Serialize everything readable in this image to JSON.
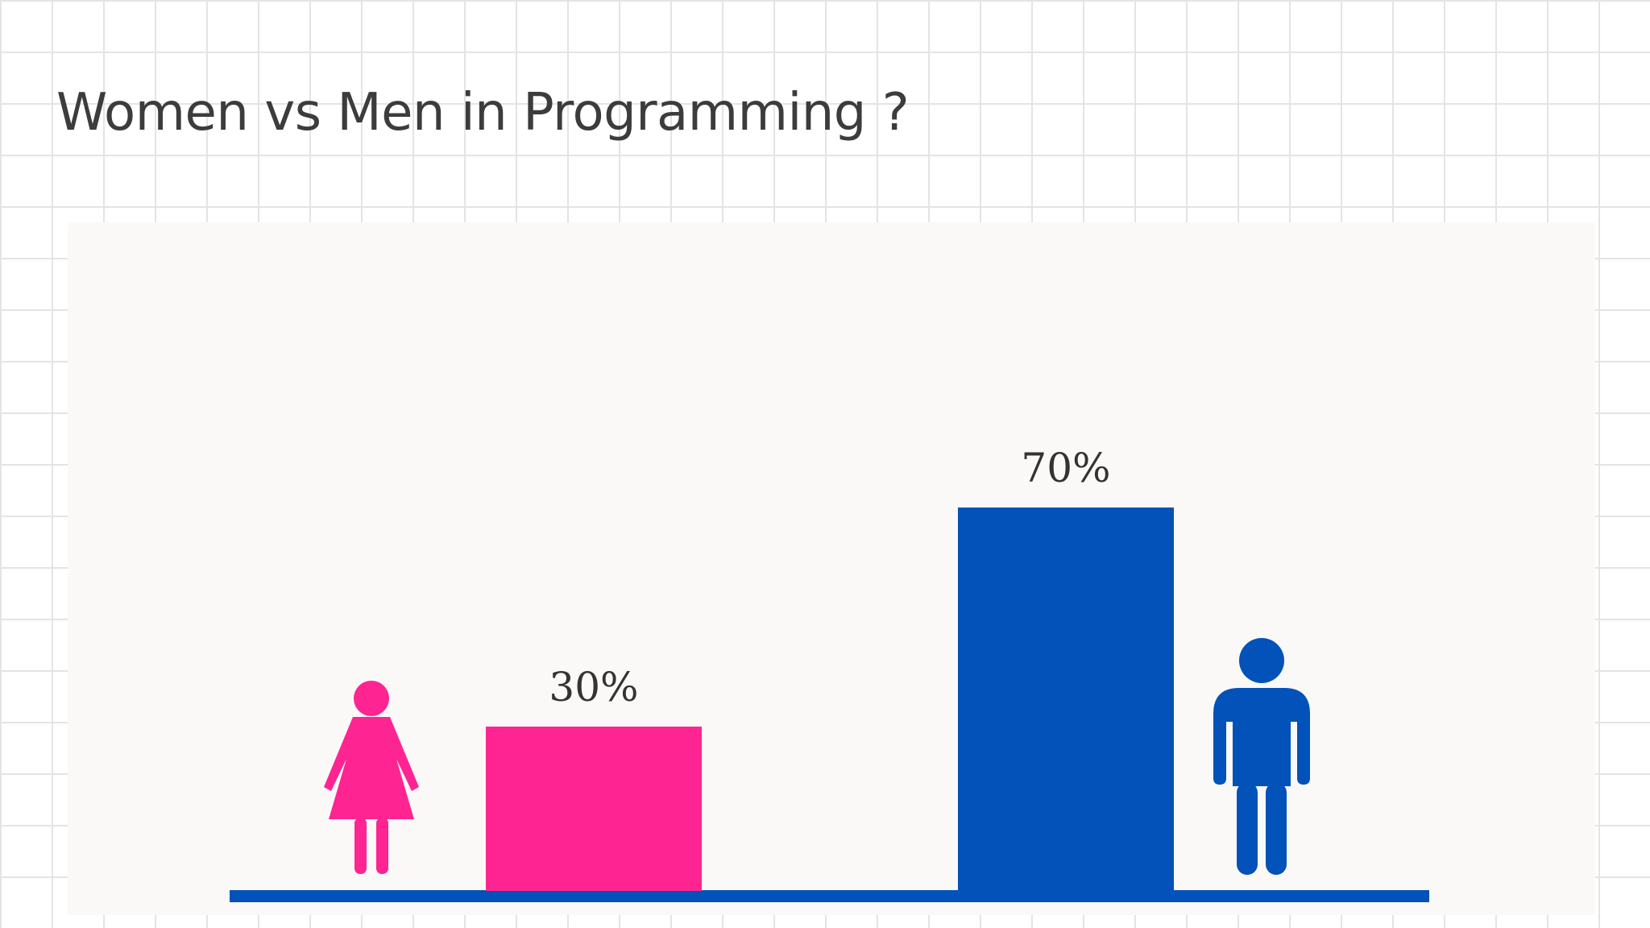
{
  "title": "Women vs Men in Programming ?",
  "colors": {
    "women": "#fe2492",
    "men": "#0252b9",
    "baseline": "#0252b9",
    "panel": "#faf9f8"
  },
  "icons": {
    "women": "woman-figure-icon",
    "men": "man-figure-icon"
  },
  "chart_data": {
    "type": "bar",
    "categories": [
      "Women",
      "Men"
    ],
    "values": [
      30,
      70
    ],
    "data_labels": [
      "30%",
      "70%"
    ],
    "ylim": [
      0,
      100
    ],
    "grid": false,
    "legend": "none",
    "title": "Women vs Men in Programming ?",
    "xlabel": "",
    "ylabel": ""
  }
}
